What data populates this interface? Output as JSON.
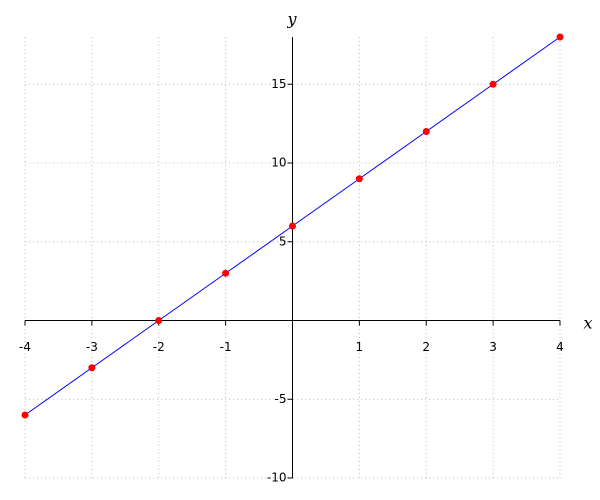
{
  "chart_data": {
    "type": "line",
    "x_label": "x",
    "y_label": "y",
    "x": [
      -4,
      -3,
      -2,
      -1,
      0,
      1,
      2,
      3,
      4
    ],
    "series": [
      {
        "color": "#0000ff",
        "marker_color": "#ff0000",
        "values": [
          -6,
          -3,
          0,
          3,
          6,
          9,
          12,
          15,
          18
        ]
      }
    ],
    "xlim": [
      -4,
      4
    ],
    "ylim": [
      -10,
      18
    ],
    "xticks": [
      -4,
      -3,
      -2,
      -1,
      1,
      2,
      3,
      4
    ],
    "yticks": [
      -10,
      -5,
      5,
      10,
      15
    ],
    "grid": true
  }
}
